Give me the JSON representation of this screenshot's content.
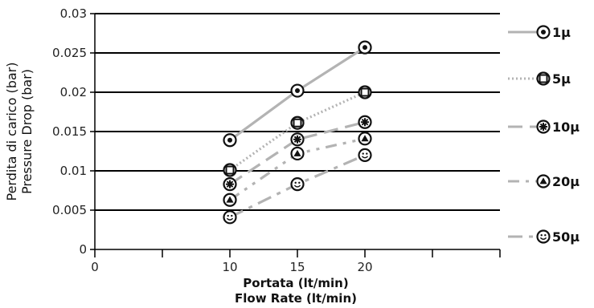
{
  "chart_data": {
    "type": "line",
    "xlabel": [
      "Portata (lt/min)",
      "Flow Rate (lt/min)"
    ],
    "ylabel": [
      "Perdita di carico (bar)",
      "Pressure Drop (bar)"
    ],
    "xlim": [
      0,
      30
    ],
    "ylim": [
      0,
      0.03
    ],
    "x_ticks": [
      0,
      10,
      15,
      20
    ],
    "x_tick_labels": [
      "0",
      "10",
      "15",
      "20"
    ],
    "y_ticks": [
      0,
      0.005,
      0.01,
      0.015,
      0.02,
      0.025,
      0.03
    ],
    "y_tick_labels": [
      "0",
      "0.005",
      "0.01",
      "0.015",
      "0.02",
      "0.025",
      "0.03"
    ],
    "grid": "horizontal",
    "legend_position": "right",
    "series": [
      {
        "name": "1µ",
        "marker": "dot-circle",
        "style": "solid",
        "color": "#b3b3b3",
        "x": [
          10,
          15,
          20
        ],
        "y": [
          0.0139,
          0.0202,
          0.0257
        ]
      },
      {
        "name": "5µ",
        "marker": "square-circle",
        "style": "dotted",
        "color": "#b3b3b3",
        "x": [
          10,
          15,
          20
        ],
        "y": [
          0.0101,
          0.0161,
          0.02
        ]
      },
      {
        "name": "10µ",
        "marker": "asterisk",
        "style": "dashed",
        "color": "#b3b3b3",
        "x": [
          10,
          15,
          20
        ],
        "y": [
          0.0083,
          0.014,
          0.0162
        ]
      },
      {
        "name": "20µ",
        "marker": "triangle",
        "style": "dash-dot-dot",
        "color": "#b3b3b3",
        "x": [
          10,
          15,
          20
        ],
        "y": [
          0.0063,
          0.0122,
          0.0141
        ]
      },
      {
        "name": "50µ",
        "marker": "smiley",
        "style": "dash-dot",
        "color": "#b3b3b3",
        "x": [
          10,
          15,
          20
        ],
        "y": [
          0.0041,
          0.0083,
          0.012
        ]
      }
    ]
  }
}
